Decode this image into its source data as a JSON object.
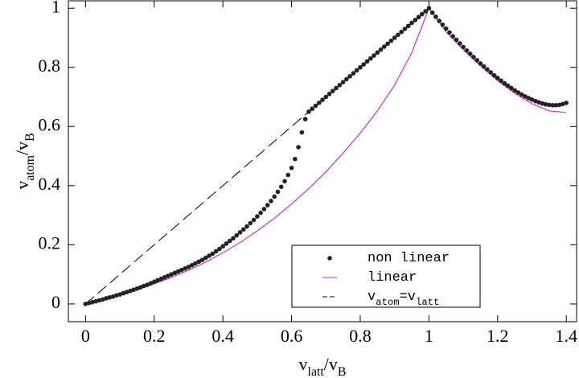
{
  "chart_data": {
    "type": "scatter-line",
    "xlabel": [
      "v",
      "latt",
      "/v",
      "B"
    ],
    "ylabel": [
      "v",
      "atom",
      "/v",
      "B"
    ],
    "xlim": [
      -0.05,
      1.43
    ],
    "ylim": [
      -0.06,
      1.025
    ],
    "xticks": [
      0,
      0.2,
      0.4,
      0.6,
      0.8,
      1,
      1.2,
      1.4
    ],
    "yticks": [
      0,
      0.2,
      0.4,
      0.6,
      0.8,
      1
    ],
    "series": [
      {
        "name": [
          "non linear"
        ],
        "kind": "dots",
        "color": "#222222",
        "x": [
          0,
          0.01,
          0.02,
          0.03,
          0.04,
          0.05,
          0.06,
          0.07,
          0.08,
          0.09,
          0.1,
          0.11,
          0.12,
          0.13,
          0.14,
          0.15,
          0.16,
          0.17,
          0.18,
          0.19,
          0.2,
          0.21,
          0.22,
          0.23,
          0.24,
          0.25,
          0.26,
          0.27,
          0.28,
          0.29,
          0.3,
          0.31,
          0.32,
          0.33,
          0.34,
          0.35,
          0.36,
          0.37,
          0.38,
          0.39,
          0.4,
          0.41,
          0.42,
          0.43,
          0.44,
          0.45,
          0.46,
          0.47,
          0.48,
          0.49,
          0.5,
          0.51,
          0.52,
          0.53,
          0.54,
          0.55,
          0.56,
          0.57,
          0.58,
          0.59,
          0.6,
          0.61,
          0.62,
          0.63,
          0.64,
          0.65,
          0.66,
          0.67,
          0.68,
          0.69,
          0.7,
          0.71,
          0.72,
          0.73,
          0.74,
          0.75,
          0.76,
          0.77,
          0.78,
          0.79,
          0.8,
          0.81,
          0.82,
          0.83,
          0.84,
          0.85,
          0.86,
          0.87,
          0.88,
          0.89,
          0.9,
          0.91,
          0.92,
          0.93,
          0.94,
          0.95,
          0.96,
          0.97,
          0.98,
          0.99,
          1,
          1.01,
          1.02,
          1.03,
          1.04,
          1.05,
          1.06,
          1.07,
          1.08,
          1.09,
          1.1,
          1.11,
          1.12,
          1.13,
          1.14,
          1.15,
          1.16,
          1.17,
          1.18,
          1.19,
          1.2,
          1.21,
          1.22,
          1.23,
          1.24,
          1.25,
          1.26,
          1.27,
          1.28,
          1.29,
          1.3,
          1.31,
          1.32,
          1.33,
          1.34,
          1.35,
          1.36,
          1.37,
          1.38,
          1.39,
          1.4
        ],
        "values": [
          0,
          0.003,
          0.006,
          0.009,
          0.012,
          0.015,
          0.019,
          0.022,
          0.025,
          0.029,
          0.032,
          0.036,
          0.04,
          0.044,
          0.048,
          0.052,
          0.056,
          0.061,
          0.065,
          0.07,
          0.075,
          0.08,
          0.085,
          0.09,
          0.095,
          0.1,
          0.105,
          0.11,
          0.115,
          0.12,
          0.125,
          0.131,
          0.137,
          0.143,
          0.149,
          0.156,
          0.163,
          0.17,
          0.178,
          0.186,
          0.195,
          0.204,
          0.213,
          0.222,
          0.232,
          0.242,
          0.252,
          0.262,
          0.273,
          0.284,
          0.296,
          0.308,
          0.321,
          0.334,
          0.348,
          0.363,
          0.379,
          0.396,
          0.415,
          0.436,
          0.46,
          0.49,
          0.53,
          0.58,
          0.625,
          0.65,
          0.66,
          0.67,
          0.68,
          0.69,
          0.7,
          0.71,
          0.72,
          0.73,
          0.74,
          0.75,
          0.76,
          0.77,
          0.78,
          0.79,
          0.8,
          0.81,
          0.82,
          0.83,
          0.84,
          0.85,
          0.86,
          0.87,
          0.88,
          0.89,
          0.9,
          0.91,
          0.92,
          0.93,
          0.94,
          0.95,
          0.96,
          0.97,
          0.98,
          0.99,
          1,
          0.985,
          0.971,
          0.957,
          0.944,
          0.931,
          0.918,
          0.905,
          0.893,
          0.881,
          0.869,
          0.857,
          0.846,
          0.835,
          0.824,
          0.813,
          0.803,
          0.793,
          0.783,
          0.773,
          0.764,
          0.755,
          0.746,
          0.738,
          0.73,
          0.722,
          0.715,
          0.708,
          0.702,
          0.696,
          0.691,
          0.686,
          0.682,
          0.678,
          0.675,
          0.673,
          0.672,
          0.672,
          0.673,
          0.676,
          0.68
        ]
      },
      {
        "name": [
          "linear"
        ],
        "kind": "line",
        "color": "#cc22cc",
        "x": [
          0,
          0.05,
          0.1,
          0.15,
          0.2,
          0.25,
          0.3,
          0.35,
          0.4,
          0.45,
          0.5,
          0.55,
          0.6,
          0.65,
          0.7,
          0.75,
          0.8,
          0.85,
          0.9,
          0.95,
          1,
          1.05,
          1.1,
          1.15,
          1.2,
          1.25,
          1.3,
          1.35,
          1.4
        ],
        "values": [
          0,
          0.014,
          0.03,
          0.048,
          0.068,
          0.09,
          0.114,
          0.142,
          0.173,
          0.208,
          0.247,
          0.29,
          0.338,
          0.39,
          0.447,
          0.51,
          0.578,
          0.653,
          0.74,
          0.85,
          1,
          0.92,
          0.86,
          0.805,
          0.755,
          0.712,
          0.677,
          0.653,
          0.647
        ]
      },
      {
        "name": [
          "v",
          "atom",
          "=v",
          "latt"
        ],
        "kind": "dashed",
        "color": "#000000",
        "x": [
          0,
          1
        ],
        "values": [
          0,
          1
        ]
      }
    ]
  }
}
